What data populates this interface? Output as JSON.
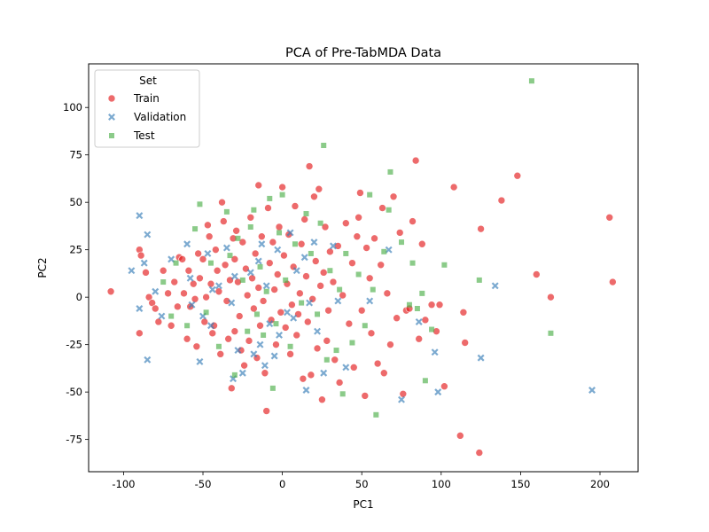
{
  "chart_data": {
    "type": "scatter",
    "title": "PCA of Pre-TabMDA Data",
    "xlabel": "PC1",
    "ylabel": "PC2",
    "xlim": [
      -122,
      224
    ],
    "ylim": [
      -92,
      123
    ],
    "xticks": [
      -100,
      -50,
      0,
      50,
      100,
      150,
      200
    ],
    "yticks": [
      -75,
      -50,
      -25,
      0,
      25,
      50,
      75,
      100
    ],
    "grid": false,
    "legend": {
      "title": "Set",
      "placement": "top-left",
      "entries": [
        {
          "label": "Train",
          "marker": "circle"
        },
        {
          "label": "Validation",
          "marker": "x"
        },
        {
          "label": "Test",
          "marker": "square"
        }
      ]
    },
    "colors": {
      "Train": "#e41a1c",
      "Validation": "#377eb8",
      "Test": "#4daf4a"
    },
    "series": [
      {
        "name": "Train",
        "points": [
          [
            -108,
            3
          ],
          [
            -90,
            25
          ],
          [
            -89,
            22
          ],
          [
            -90,
            -19
          ],
          [
            -86,
            13
          ],
          [
            -84,
            0
          ],
          [
            -82,
            -3
          ],
          [
            -80,
            -6
          ],
          [
            -78,
            -13
          ],
          [
            -75,
            14
          ],
          [
            -72,
            2
          ],
          [
            -70,
            -15
          ],
          [
            -68,
            8
          ],
          [
            -66,
            -5
          ],
          [
            -65,
            21
          ],
          [
            -63,
            20
          ],
          [
            -62,
            2
          ],
          [
            -60,
            -22
          ],
          [
            -59,
            14
          ],
          [
            -58,
            -5
          ],
          [
            -56,
            7
          ],
          [
            -55,
            -1
          ],
          [
            -54,
            -26
          ],
          [
            -53,
            23
          ],
          [
            -52,
            10
          ],
          [
            -50,
            20
          ],
          [
            -49,
            -13
          ],
          [
            -48,
            0
          ],
          [
            -47,
            38
          ],
          [
            -46,
            32
          ],
          [
            -45,
            7
          ],
          [
            -44,
            -19
          ],
          [
            -43,
            -15
          ],
          [
            -42,
            25
          ],
          [
            -41,
            14
          ],
          [
            -40,
            3
          ],
          [
            -39,
            -30
          ],
          [
            -38,
            50
          ],
          [
            -37,
            40
          ],
          [
            -36,
            17
          ],
          [
            -35,
            -2
          ],
          [
            -34,
            -22
          ],
          [
            -33,
            9
          ],
          [
            -32,
            -48
          ],
          [
            -31,
            31
          ],
          [
            -30,
            20
          ],
          [
            -30,
            -18
          ],
          [
            -29,
            35
          ],
          [
            -28,
            8
          ],
          [
            -27,
            -10
          ],
          [
            -26,
            -28
          ],
          [
            -25,
            29
          ],
          [
            -24,
            -36
          ],
          [
            -23,
            15
          ],
          [
            -22,
            1
          ],
          [
            -21,
            -23
          ],
          [
            -20,
            42
          ],
          [
            -19,
            10
          ],
          [
            -18,
            -6
          ],
          [
            -17,
            23
          ],
          [
            -16,
            -32
          ],
          [
            -15,
            5
          ],
          [
            -15,
            59
          ],
          [
            -14,
            -15
          ],
          [
            -13,
            32
          ],
          [
            -12,
            -2
          ],
          [
            -11,
            -40
          ],
          [
            -10,
            -60
          ],
          [
            -9,
            47
          ],
          [
            -8,
            18
          ],
          [
            -7,
            -12
          ],
          [
            -6,
            29
          ],
          [
            -5,
            4
          ],
          [
            -4,
            -25
          ],
          [
            -3,
            12
          ],
          [
            -2,
            37
          ],
          [
            -1,
            -8
          ],
          [
            0,
            58
          ],
          [
            1,
            22
          ],
          [
            2,
            -16
          ],
          [
            3,
            7
          ],
          [
            4,
            33
          ],
          [
            5,
            -30
          ],
          [
            6,
            -4
          ],
          [
            7,
            16
          ],
          [
            8,
            48
          ],
          [
            9,
            -20
          ],
          [
            10,
            -9
          ],
          [
            11,
            2
          ],
          [
            12,
            28
          ],
          [
            13,
            -43
          ],
          [
            14,
            41
          ],
          [
            15,
            11
          ],
          [
            16,
            -13
          ],
          [
            17,
            69
          ],
          [
            18,
            -41
          ],
          [
            19,
            -1
          ],
          [
            20,
            53
          ],
          [
            21,
            19
          ],
          [
            22,
            -27
          ],
          [
            23,
            57
          ],
          [
            24,
            6
          ],
          [
            25,
            -54
          ],
          [
            26,
            13
          ],
          [
            27,
            37
          ],
          [
            28,
            -23
          ],
          [
            29,
            -7
          ],
          [
            30,
            24
          ],
          [
            32,
            8
          ],
          [
            33,
            -33
          ],
          [
            35,
            27
          ],
          [
            36,
            -45
          ],
          [
            38,
            1
          ],
          [
            40,
            39
          ],
          [
            42,
            -14
          ],
          [
            44,
            18
          ],
          [
            45,
            -37
          ],
          [
            47,
            32
          ],
          [
            48,
            42
          ],
          [
            49,
            55
          ],
          [
            50,
            -7
          ],
          [
            52,
            -52
          ],
          [
            53,
            26
          ],
          [
            55,
            10
          ],
          [
            56,
            -19
          ],
          [
            58,
            31
          ],
          [
            60,
            -35
          ],
          [
            62,
            17
          ],
          [
            63,
            47
          ],
          [
            64,
            -40
          ],
          [
            66,
            2
          ],
          [
            68,
            -25
          ],
          [
            70,
            53
          ],
          [
            72,
            -11
          ],
          [
            74,
            34
          ],
          [
            76,
            -51
          ],
          [
            78,
            -7
          ],
          [
            80,
            -6
          ],
          [
            82,
            40
          ],
          [
            84,
            72
          ],
          [
            86,
            -22
          ],
          [
            88,
            28
          ],
          [
            90,
            -12
          ],
          [
            94,
            -4
          ],
          [
            97,
            -18
          ],
          [
            99,
            -4
          ],
          [
            102,
            -47
          ],
          [
            108,
            58
          ],
          [
            112,
            -73
          ],
          [
            114,
            -8
          ],
          [
            115,
            -24
          ],
          [
            124,
            -82
          ],
          [
            125,
            36
          ],
          [
            138,
            51
          ],
          [
            148,
            64
          ],
          [
            160,
            12
          ],
          [
            169,
            0
          ],
          [
            206,
            42
          ],
          [
            208,
            8
          ]
        ]
      },
      {
        "name": "Validation",
        "points": [
          [
            -95,
            14
          ],
          [
            -90,
            43
          ],
          [
            -90,
            -6
          ],
          [
            -87,
            18
          ],
          [
            -85,
            33
          ],
          [
            -85,
            -33
          ],
          [
            -80,
            3
          ],
          [
            -76,
            -10
          ],
          [
            -70,
            20
          ],
          [
            -60,
            28
          ],
          [
            -58,
            10
          ],
          [
            -57,
            -4
          ],
          [
            -52,
            -34
          ],
          [
            -50,
            -10
          ],
          [
            -47,
            23
          ],
          [
            -45,
            -15
          ],
          [
            -44,
            4
          ],
          [
            -40,
            6
          ],
          [
            -35,
            26
          ],
          [
            -32,
            -3
          ],
          [
            -31,
            -43
          ],
          [
            -30,
            11
          ],
          [
            -28,
            -28
          ],
          [
            -25,
            -40
          ],
          [
            -20,
            13
          ],
          [
            -18,
            -30
          ],
          [
            -15,
            19
          ],
          [
            -14,
            -25
          ],
          [
            -13,
            28
          ],
          [
            -11,
            -36
          ],
          [
            -10,
            6
          ],
          [
            -8,
            -14
          ],
          [
            -5,
            -31
          ],
          [
            -3,
            25
          ],
          [
            -2,
            -20
          ],
          [
            3,
            -8
          ],
          [
            5,
            34
          ],
          [
            7,
            -11
          ],
          [
            9,
            14
          ],
          [
            14,
            21
          ],
          [
            15,
            -49
          ],
          [
            17,
            -3
          ],
          [
            20,
            29
          ],
          [
            22,
            -18
          ],
          [
            26,
            -40
          ],
          [
            32,
            27
          ],
          [
            35,
            -2
          ],
          [
            40,
            -37
          ],
          [
            55,
            -2
          ],
          [
            67,
            25
          ],
          [
            75,
            -54
          ],
          [
            86,
            -13
          ],
          [
            96,
            -29
          ],
          [
            98,
            -50
          ],
          [
            125,
            -32
          ],
          [
            134,
            6
          ],
          [
            195,
            -49
          ]
        ]
      },
      {
        "name": "Test",
        "points": [
          [
            -75,
            8
          ],
          [
            -70,
            -10
          ],
          [
            -67,
            18
          ],
          [
            -60,
            -15
          ],
          [
            -55,
            36
          ],
          [
            -52,
            49
          ],
          [
            -48,
            -8
          ],
          [
            -45,
            18
          ],
          [
            -40,
            -26
          ],
          [
            -35,
            45
          ],
          [
            -33,
            22
          ],
          [
            -30,
            -41
          ],
          [
            -28,
            31
          ],
          [
            -25,
            9
          ],
          [
            -22,
            -18
          ],
          [
            -20,
            37
          ],
          [
            -18,
            46
          ],
          [
            -16,
            -9
          ],
          [
            -14,
            16
          ],
          [
            -12,
            -20
          ],
          [
            -10,
            3
          ],
          [
            -8,
            52
          ],
          [
            -6,
            -48
          ],
          [
            -4,
            -14
          ],
          [
            -2,
            34
          ],
          [
            0,
            54
          ],
          [
            2,
            9
          ],
          [
            5,
            -26
          ],
          [
            8,
            28
          ],
          [
            12,
            -3
          ],
          [
            15,
            44
          ],
          [
            18,
            23
          ],
          [
            22,
            -9
          ],
          [
            24,
            39
          ],
          [
            26,
            80
          ],
          [
            28,
            -33
          ],
          [
            30,
            14
          ],
          [
            34,
            -28
          ],
          [
            36,
            4
          ],
          [
            38,
            -51
          ],
          [
            40,
            23
          ],
          [
            44,
            -24
          ],
          [
            48,
            12
          ],
          [
            52,
            -15
          ],
          [
            55,
            54
          ],
          [
            57,
            4
          ],
          [
            59,
            -62
          ],
          [
            64,
            24
          ],
          [
            67,
            46
          ],
          [
            68,
            66
          ],
          [
            75,
            29
          ],
          [
            80,
            -4
          ],
          [
            82,
            18
          ],
          [
            85,
            -6
          ],
          [
            88,
            2
          ],
          [
            90,
            -44
          ],
          [
            94,
            -17
          ],
          [
            102,
            17
          ],
          [
            124,
            9
          ],
          [
            157,
            114
          ],
          [
            169,
            -19
          ]
        ]
      }
    ]
  }
}
